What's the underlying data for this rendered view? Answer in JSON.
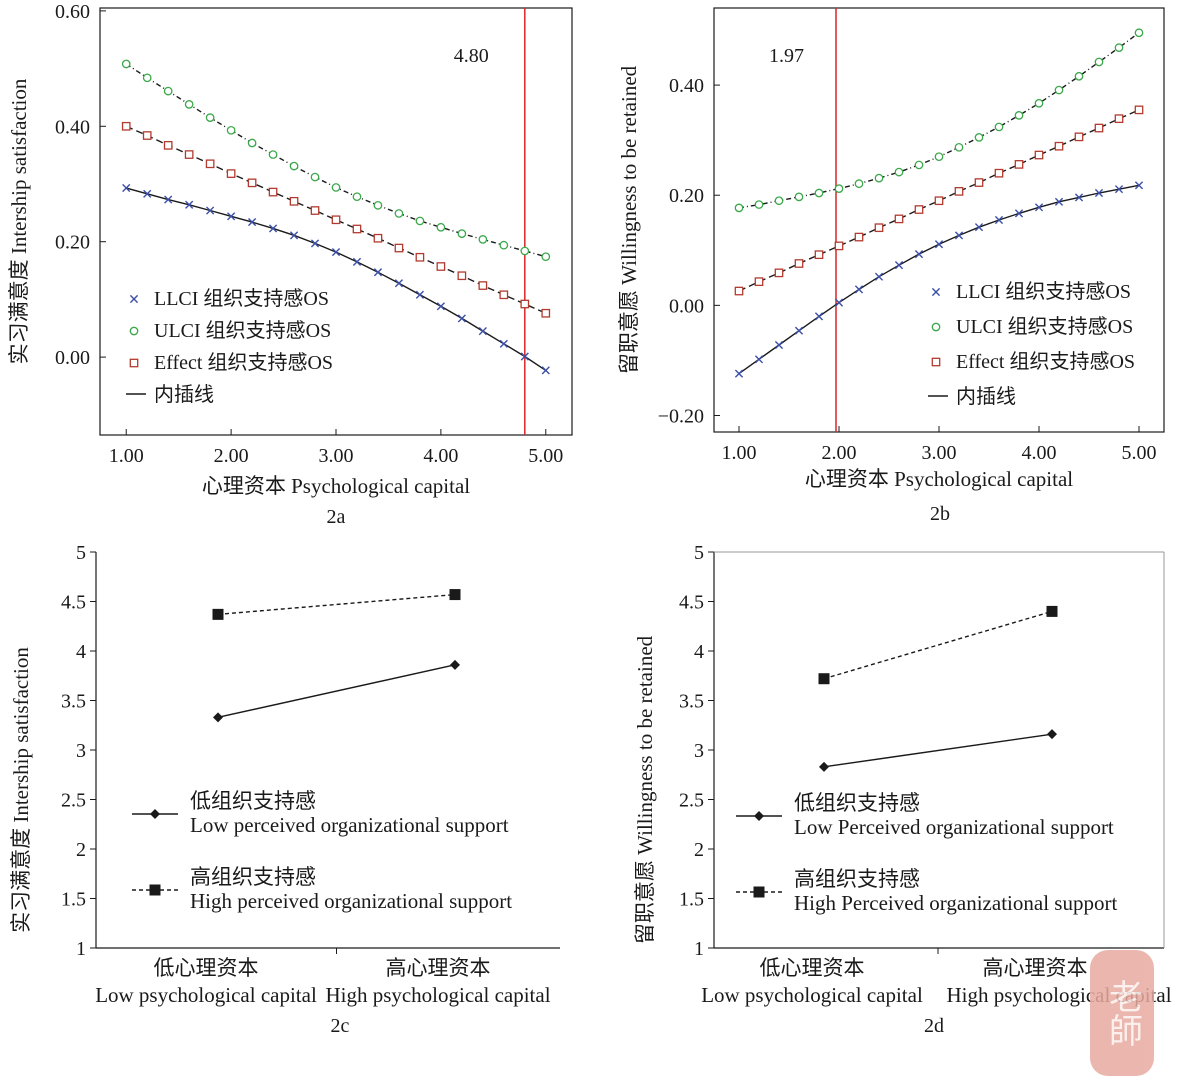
{
  "figure_labels": {
    "a": "2a",
    "b": "2b",
    "c": "2c",
    "d": "2d"
  },
  "chart_data": [
    {
      "id": "2a",
      "type": "line",
      "panel_label": "2a",
      "xlabel": "心理资本 Psychological capital",
      "ylabel": "实习满意度 Intership satisfaction",
      "xlim": [
        0.75,
        5.25
      ],
      "ylim": [
        -0.135,
        0.605
      ],
      "xticks": [
        1,
        2,
        3,
        4,
        5
      ],
      "xtick_labels": [
        "1.00",
        "2.00",
        "3.00",
        "4.00",
        "5.00"
      ],
      "yticks": [
        0,
        0.2,
        0.4,
        0.6
      ],
      "ytick_labels": [
        "0.00",
        "0.20",
        "0.40",
        "0.60"
      ],
      "vline": {
        "x": 4.8,
        "label": "4.80",
        "color": "#d62728"
      },
      "legend": {
        "position": "lower-left",
        "entries": [
          "LLCI 组织支持感OS",
          "ULCI 组织支持感OS",
          "Effect 组织支持感OS",
          "内插线"
        ]
      },
      "x": [
        1.0,
        1.2,
        1.4,
        1.6,
        1.8,
        2.0,
        2.2,
        2.4,
        2.6,
        2.8,
        3.0,
        3.2,
        3.4,
        3.6,
        3.8,
        4.0,
        4.2,
        4.4,
        4.6,
        4.8,
        5.0
      ],
      "series": [
        {
          "name": "LLCI 组织支持感OS",
          "marker": "x",
          "color": "#3b4fa8",
          "values": [
            0.293,
            0.283,
            0.273,
            0.264,
            0.254,
            0.244,
            0.234,
            0.223,
            0.211,
            0.197,
            0.182,
            0.165,
            0.147,
            0.128,
            0.108,
            0.088,
            0.067,
            0.045,
            0.023,
            0.001,
            -0.023
          ]
        },
        {
          "name": "ULCI 组织支持感OS",
          "marker": "circle",
          "color": "#3aa84a",
          "values": [
            0.508,
            0.484,
            0.461,
            0.438,
            0.415,
            0.393,
            0.371,
            0.351,
            0.331,
            0.312,
            0.294,
            0.278,
            0.263,
            0.249,
            0.236,
            0.225,
            0.214,
            0.204,
            0.194,
            0.184,
            0.174
          ]
        },
        {
          "name": "Effect 组织支持感OS",
          "marker": "square",
          "color": "#b23a2e",
          "values": [
            0.4,
            0.384,
            0.367,
            0.351,
            0.335,
            0.318,
            0.302,
            0.286,
            0.27,
            0.254,
            0.238,
            0.222,
            0.206,
            0.189,
            0.173,
            0.157,
            0.141,
            0.124,
            0.108,
            0.092,
            0.076
          ]
        }
      ]
    },
    {
      "id": "2b",
      "type": "line",
      "panel_label": "2b",
      "xlabel": "心理资本 Psychological capital",
      "ylabel": "留职意愿 Willingness to be retained",
      "xlim": [
        0.75,
        5.25
      ],
      "ylim": [
        -0.23,
        0.54
      ],
      "xticks": [
        1,
        2,
        3,
        4,
        5
      ],
      "xtick_labels": [
        "1.00",
        "2.00",
        "3.00",
        "4.00",
        "5.00"
      ],
      "yticks": [
        -0.2,
        0,
        0.2,
        0.4
      ],
      "ytick_labels": [
        "−0.20",
        "0.00",
        "0.20",
        "0.40"
      ],
      "vline": {
        "x": 1.97,
        "label": "1.97",
        "color": "#d62728"
      },
      "legend": {
        "position": "lower-right",
        "entries": [
          "LLCI 组织支持感OS",
          "ULCI 组织支持感OS",
          "Effect 组织支持感OS",
          "内插线"
        ]
      },
      "x": [
        1.0,
        1.2,
        1.4,
        1.6,
        1.8,
        2.0,
        2.2,
        2.4,
        2.6,
        2.8,
        3.0,
        3.2,
        3.4,
        3.6,
        3.8,
        4.0,
        4.2,
        4.4,
        4.6,
        4.8,
        5.0
      ],
      "series": [
        {
          "name": "LLCI 组织支持感OS",
          "marker": "x",
          "color": "#3b4fa8",
          "values": [
            -0.124,
            -0.098,
            -0.072,
            -0.046,
            -0.02,
            0.005,
            0.029,
            0.052,
            0.073,
            0.093,
            0.111,
            0.127,
            0.142,
            0.155,
            0.167,
            0.178,
            0.188,
            0.196,
            0.204,
            0.211,
            0.218
          ]
        },
        {
          "name": "ULCI 组织支持感OS",
          "marker": "circle",
          "color": "#3aa84a",
          "values": [
            0.177,
            0.183,
            0.19,
            0.197,
            0.204,
            0.212,
            0.221,
            0.231,
            0.242,
            0.255,
            0.27,
            0.287,
            0.305,
            0.324,
            0.345,
            0.367,
            0.391,
            0.416,
            0.442,
            0.468,
            0.495
          ]
        },
        {
          "name": "Effect 组织支持感OS",
          "marker": "square",
          "color": "#b23a2e",
          "values": [
            0.026,
            0.043,
            0.059,
            0.076,
            0.092,
            0.108,
            0.124,
            0.141,
            0.157,
            0.174,
            0.19,
            0.207,
            0.223,
            0.24,
            0.256,
            0.273,
            0.289,
            0.306,
            0.322,
            0.339,
            0.355
          ]
        }
      ]
    },
    {
      "id": "2c",
      "type": "line",
      "panel_label": "2c",
      "xlabel": "",
      "ylabel": "实习满意度 Intership satisfaction",
      "ylim": [
        1,
        5
      ],
      "yticks": [
        1,
        1.5,
        2,
        2.5,
        3,
        3.5,
        4,
        4.5,
        5
      ],
      "ytick_labels": [
        "1",
        "1.5",
        "2",
        "2.5",
        "3",
        "3.5",
        "4",
        "4.5",
        "5"
      ],
      "categories": [
        "低心理资本 Low psychological capital",
        "高心理资本 High psychological capital"
      ],
      "category_lines": [
        [
          "低心理资本",
          "Low psychological capital"
        ],
        [
          "高心理资本",
          "High psychological capital"
        ]
      ],
      "legend": {
        "position": "lower-left"
      },
      "series": [
        {
          "name": "低组织支持感 Low perceived organizational support",
          "name_lines": [
            "低组织支持感",
            "Low perceived organizational support"
          ],
          "marker": "diamond",
          "line": "solid",
          "values": [
            3.33,
            3.86
          ]
        },
        {
          "name": "高组织支持感 High perceived organizational support",
          "name_lines": [
            "高组织支持感",
            "High perceived organizational support"
          ],
          "marker": "square",
          "line": "dashed",
          "values": [
            4.37,
            4.57
          ]
        }
      ]
    },
    {
      "id": "2d",
      "type": "line",
      "panel_label": "2d",
      "xlabel": "",
      "ylabel": "留职意愿 Willingness to be retained",
      "ylim": [
        1,
        5
      ],
      "yticks": [
        1,
        1.5,
        2,
        2.5,
        3,
        3.5,
        4,
        4.5,
        5
      ],
      "ytick_labels": [
        "1",
        "1.5",
        "2",
        "2.5",
        "3",
        "3.5",
        "4",
        "4.5",
        "5"
      ],
      "categories": [
        "低心理资本 Low psychological capital",
        "高心理资本 High psychological capital"
      ],
      "category_lines": [
        [
          "低心理资本",
          "Low psychological capital"
        ],
        [
          "高心理资本",
          "High psychological capital"
        ]
      ],
      "legend": {
        "position": "lower-left"
      },
      "series": [
        {
          "name": "低组织支持感 Low Perceived organizational support",
          "name_lines": [
            "低组织支持感",
            "Low Perceived organizational support"
          ],
          "marker": "diamond",
          "line": "solid",
          "values": [
            2.83,
            3.16
          ]
        },
        {
          "name": "高组织支持感 High Perceived organizational support",
          "name_lines": [
            "高组织支持感",
            "High Perceived organizational support"
          ],
          "marker": "square",
          "line": "dashed",
          "values": [
            3.72,
            4.4
          ]
        }
      ]
    }
  ],
  "watermark": {
    "text": "老師"
  }
}
